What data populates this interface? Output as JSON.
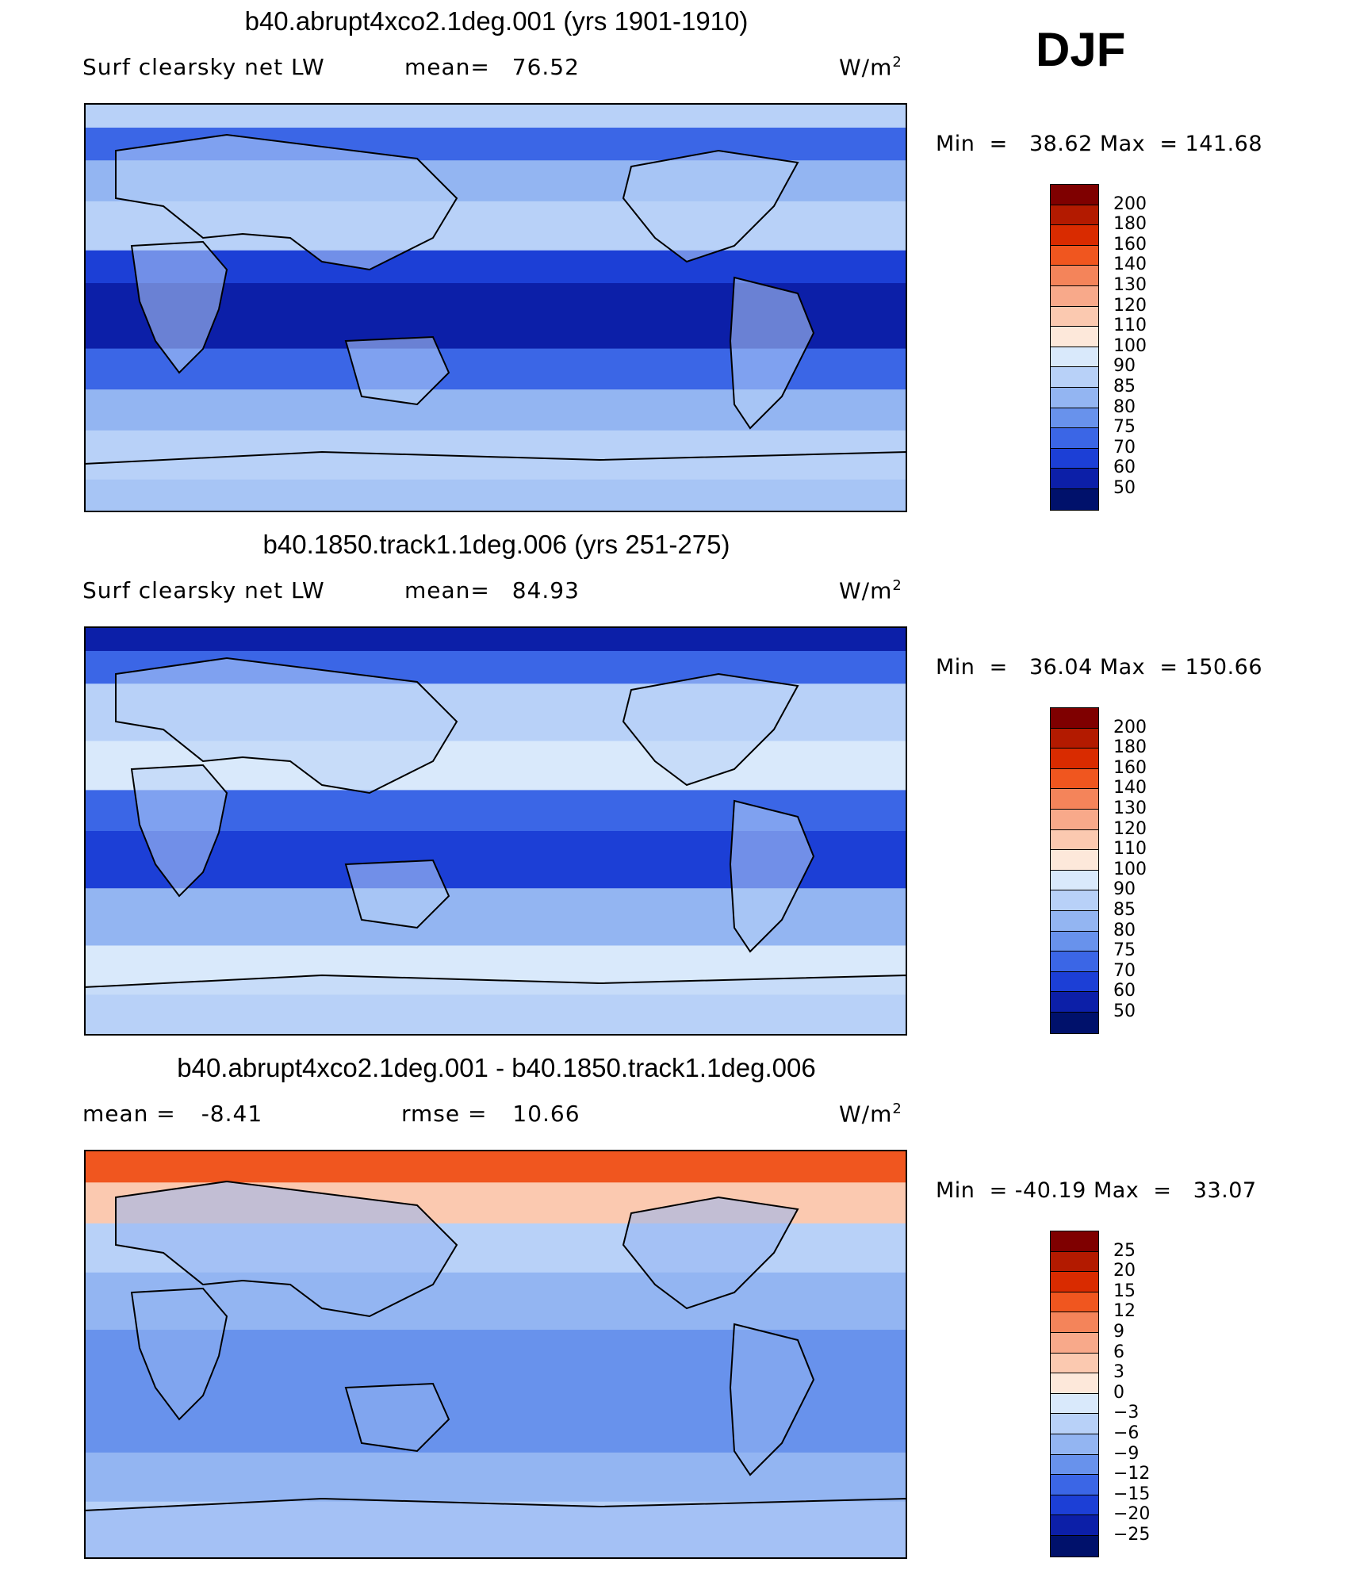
{
  "season": "DJF",
  "chart_data": [
    {
      "type": "heatmap",
      "title": "b40.abrupt4xco2.1deg.001 (yrs 1901-1910)",
      "variable": "Surf clearsky net LW",
      "mean_label": "mean=",
      "mean_value": "76.52",
      "units": "W/m",
      "units_exp": "2",
      "min_label": "Min  =",
      "min_value": "38.62",
      "max_label": "Max  =",
      "max_value": "141.68",
      "levels": [
        "200",
        "180",
        "160",
        "140",
        "130",
        "120",
        "110",
        "100",
        "90",
        "85",
        "80",
        "75",
        "70",
        "60",
        "50"
      ],
      "colors": [
        "#7f0000",
        "#b31a00",
        "#d92b00",
        "#f0561f",
        "#f4845a",
        "#f8a98a",
        "#fbc9b0",
        "#fde8da",
        "#d9e9fb",
        "#b8d1f8",
        "#93b5f2",
        "#6892ec",
        "#3b66e6",
        "#1c3fd6",
        "#0c1fa8",
        "#00116b"
      ]
    },
    {
      "type": "heatmap",
      "title": "b40.1850.track1.1deg.006 (yrs 251-275)",
      "variable": "Surf clearsky net LW",
      "mean_label": "mean=",
      "mean_value": "84.93",
      "units": "W/m",
      "units_exp": "2",
      "min_label": "Min  =",
      "min_value": "36.04",
      "max_label": "Max  =",
      "max_value": "150.66",
      "levels": [
        "200",
        "180",
        "160",
        "140",
        "130",
        "120",
        "110",
        "100",
        "90",
        "85",
        "80",
        "75",
        "70",
        "60",
        "50"
      ],
      "colors": [
        "#7f0000",
        "#b31a00",
        "#d92b00",
        "#f0561f",
        "#f4845a",
        "#f8a98a",
        "#fbc9b0",
        "#fde8da",
        "#d9e9fb",
        "#b8d1f8",
        "#93b5f2",
        "#6892ec",
        "#3b66e6",
        "#1c3fd6",
        "#0c1fa8",
        "#00116b"
      ]
    },
    {
      "type": "heatmap",
      "title": "b40.abrupt4xco2.1deg.001 - b40.1850.track1.1deg.006",
      "mean_label": "mean  =",
      "mean_value": "-8.41",
      "rmse_label": "rmse  =",
      "rmse_value": "10.66",
      "units": "W/m",
      "units_exp": "2",
      "min_label": "Min  =",
      "min_value": "-40.19",
      "max_label": "Max  =",
      "max_value": "33.07",
      "levels": [
        "25",
        "20",
        "15",
        "12",
        "9",
        "6",
        "3",
        "0",
        "-3",
        "-6",
        "-9",
        "-12",
        "-15",
        "-20",
        "-25"
      ],
      "colors": [
        "#7f0000",
        "#b31a00",
        "#d92b00",
        "#f0561f",
        "#f4845a",
        "#f8a98a",
        "#fbc9b0",
        "#fde8da",
        "#d9e9fb",
        "#b8d1f8",
        "#93b5f2",
        "#6892ec",
        "#3b66e6",
        "#1c3fd6",
        "#0c1fa8",
        "#00116b"
      ]
    }
  ]
}
